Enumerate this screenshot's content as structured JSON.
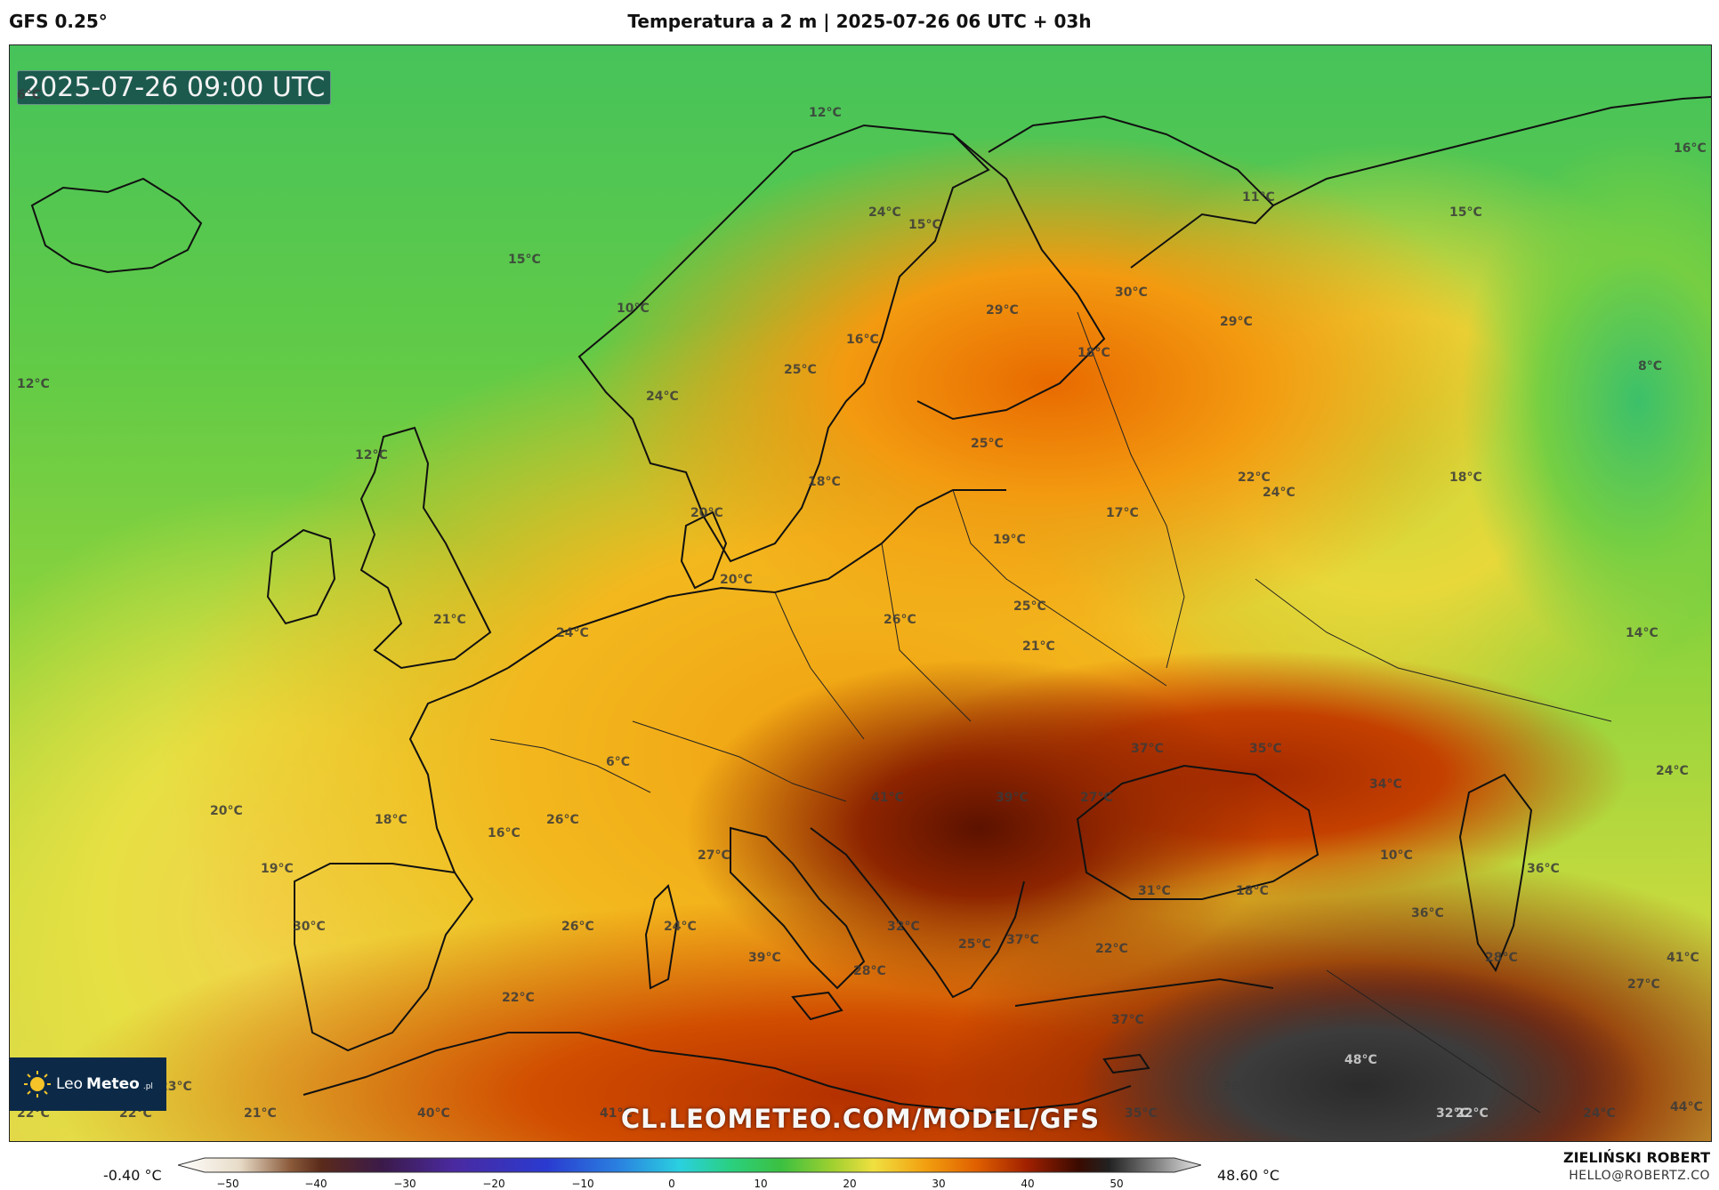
{
  "header": {
    "model": "GFS 0.25°",
    "title": "Temperatura a 2 m | 2025-07-26 06 UTC + 03h"
  },
  "map": {
    "valid_time": "2025-07-26 09:00 UTC",
    "watermark": "CL.LEOMETEO.COM/MODEL/GFS",
    "logo": {
      "part1": "Leo",
      "part2": "Meteo",
      "part3": ".pl"
    },
    "labels": [
      "6°C",
      "12°C",
      "16°C",
      "11°C",
      "24°C",
      "15°C",
      "15°C",
      "15°C",
      "10°C",
      "16°C",
      "29°C",
      "30°C",
      "29°C",
      "12°C",
      "18°C",
      "25°C",
      "24°C",
      "8°C",
      "12°C",
      "25°C",
      "18°C",
      "22°C",
      "24°C",
      "18°C",
      "20°C",
      "17°C",
      "19°C",
      "20°C",
      "25°C",
      "21°C",
      "24°C",
      "26°C",
      "14°C",
      "21°C",
      "6°C",
      "37°C",
      "35°C",
      "34°C",
      "24°C",
      "41°C",
      "39°C",
      "27°C",
      "20°C",
      "18°C",
      "26°C",
      "16°C",
      "10°C",
      "19°C",
      "27°C",
      "18°C",
      "31°C",
      "36°C",
      "36°C",
      "30°C",
      "26°C",
      "24°C",
      "32°C",
      "37°C",
      "22°C",
      "28°C",
      "41°C",
      "39°C",
      "28°C",
      "25°C",
      "27°C",
      "22°C",
      "37°C",
      "48°C",
      "36°C",
      "23°C",
      "22°C",
      "22°C",
      "21°C",
      "40°C",
      "41°C",
      "35°C",
      "32°C",
      "22°C",
      "24°C",
      "44°C"
    ]
  },
  "colorbar": {
    "min_label": "-0.40 °C",
    "max_label": "48.60 °C",
    "ticks": [
      "−50",
      "−40",
      "−30",
      "−20",
      "−10",
      "0",
      "10",
      "20",
      "30",
      "40",
      "50"
    ]
  },
  "credits": {
    "author": "ZIELIŃSKI ROBERT",
    "email": "HELLO@ROBERTZ.CO"
  },
  "colors": {
    "cold": "#3cc06a",
    "mild": "#e8d83a",
    "warm": "#f39a10",
    "hot": "#8a2200",
    "extreme": "#3c3c3c"
  }
}
